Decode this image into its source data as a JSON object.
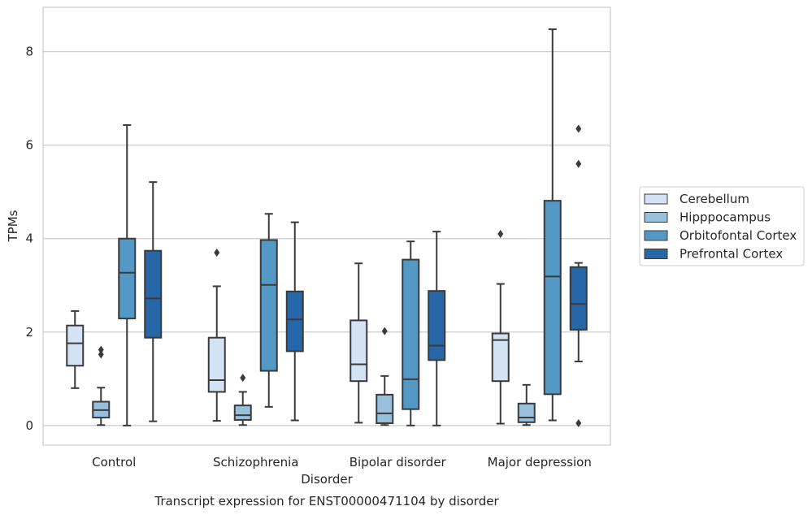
{
  "chart_data": {
    "type": "boxplot",
    "title": "",
    "caption": "Transcript expression for ENST00000471104 by disorder",
    "xlabel": "Disorder",
    "ylabel": "TPMs",
    "ylim": [
      -0.42,
      8.95
    ],
    "yticks": [
      0,
      2,
      4,
      6,
      8
    ],
    "grid": "horizontal",
    "legend_position": "right",
    "categories": [
      "Control",
      "Schizophrenia",
      "Bipolar disorder",
      "Major depression"
    ],
    "series": [
      {
        "name": "Cerebellum",
        "color": "#d4e3f4",
        "boxes": [
          {
            "whisker_low": 0.8,
            "q1": 1.28,
            "median": 1.76,
            "q3": 2.14,
            "whisker_high": 2.45,
            "outliers": []
          },
          {
            "whisker_low": 0.1,
            "q1": 0.72,
            "median": 0.97,
            "q3": 1.88,
            "whisker_high": 2.98,
            "outliers": [
              3.7
            ]
          },
          {
            "whisker_low": 0.06,
            "q1": 0.95,
            "median": 1.31,
            "q3": 2.25,
            "whisker_high": 3.47,
            "outliers": []
          },
          {
            "whisker_low": 0.04,
            "q1": 0.95,
            "median": 1.83,
            "q3": 1.97,
            "whisker_high": 3.03,
            "outliers": [
              4.1
            ]
          }
        ]
      },
      {
        "name": "Hipppocampus",
        "color": "#98c0dc",
        "boxes": [
          {
            "whisker_low": 0.01,
            "q1": 0.17,
            "median": 0.33,
            "q3": 0.51,
            "whisker_high": 0.81,
            "outliers": [
              1.52,
              1.62
            ]
          },
          {
            "whisker_low": 0.01,
            "q1": 0.12,
            "median": 0.22,
            "q3": 0.43,
            "whisker_high": 0.72,
            "outliers": [
              1.02
            ]
          },
          {
            "whisker_low": 0.01,
            "q1": 0.05,
            "median": 0.26,
            "q3": 0.66,
            "whisker_high": 1.06,
            "outliers": [
              2.02
            ]
          },
          {
            "whisker_low": 0.01,
            "q1": 0.07,
            "median": 0.17,
            "q3": 0.47,
            "whisker_high": 0.87,
            "outliers": []
          }
        ]
      },
      {
        "name": "Orbitofontal Cortex",
        "color": "#5498c5",
        "boxes": [
          {
            "whisker_low": 0.0,
            "q1": 2.29,
            "median": 3.27,
            "q3": 4.0,
            "whisker_high": 6.43,
            "outliers": []
          },
          {
            "whisker_low": 0.4,
            "q1": 1.17,
            "median": 3.01,
            "q3": 3.97,
            "whisker_high": 4.53,
            "outliers": []
          },
          {
            "whisker_low": 0.0,
            "q1": 0.35,
            "median": 0.99,
            "q3": 3.55,
            "whisker_high": 3.94,
            "outliers": []
          },
          {
            "whisker_low": 0.11,
            "q1": 0.67,
            "median": 3.19,
            "q3": 4.81,
            "whisker_high": 8.48,
            "outliers": []
          }
        ]
      },
      {
        "name": "Prefrontal Cortex",
        "color": "#2767a8",
        "boxes": [
          {
            "whisker_low": 0.09,
            "q1": 1.88,
            "median": 2.72,
            "q3": 3.74,
            "whisker_high": 5.21,
            "outliers": []
          },
          {
            "whisker_low": 0.11,
            "q1": 1.59,
            "median": 2.27,
            "q3": 2.87,
            "whisker_high": 4.35,
            "outliers": []
          },
          {
            "whisker_low": 0.0,
            "q1": 1.4,
            "median": 1.71,
            "q3": 2.88,
            "whisker_high": 4.15,
            "outliers": []
          },
          {
            "whisker_low": 1.37,
            "q1": 2.05,
            "median": 2.6,
            "q3": 3.39,
            "whisker_high": 3.48,
            "outliers": [
              0.05,
              5.6,
              6.35
            ]
          }
        ]
      }
    ]
  }
}
